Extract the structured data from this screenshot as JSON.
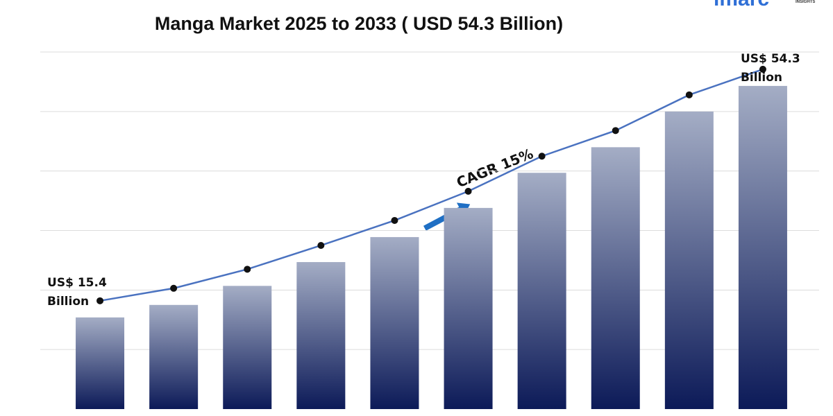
{
  "chart_data": {
    "type": "bar",
    "title": "Manga Market 2025 to 2033 ( USD 54.3 Billion)",
    "logo": "imarc",
    "logo_sub": "INSIGHTS",
    "categories": [
      null,
      null,
      null,
      null,
      null,
      null,
      null,
      null,
      null,
      null
    ],
    "values": [
      15.4,
      17.5,
      20.7,
      24.7,
      28.9,
      33.8,
      39.7,
      44.0,
      50.0,
      54.3
    ],
    "value_labels": [
      "US$ 15.4 Billion",
      null,
      null,
      null,
      null,
      null,
      null,
      null,
      null,
      "US$ 54.3 Billion"
    ],
    "color_top": "#a4adc5",
    "color_bottom": "#0c1a58",
    "line_color": "#4a72c0",
    "ylim": [
      0,
      60
    ],
    "yticks": [
      10,
      20,
      30,
      40,
      50,
      60
    ],
    "tick_labels": false,
    "grid": true,
    "annotation": "CAGR 15%"
  }
}
